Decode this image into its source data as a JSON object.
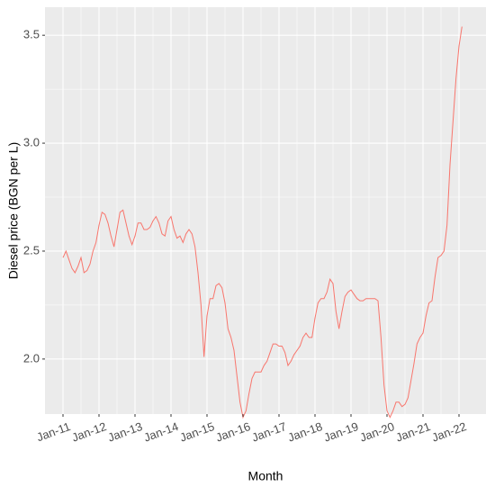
{
  "chart_data": {
    "type": "line",
    "x_label": "Month",
    "y_label": "Diesel price (BGN per L)",
    "x": [
      "2011-01",
      "2011-02",
      "2011-03",
      "2011-04",
      "2011-05",
      "2011-06",
      "2011-07",
      "2011-08",
      "2011-09",
      "2011-10",
      "2011-11",
      "2011-12",
      "2012-01",
      "2012-02",
      "2012-03",
      "2012-04",
      "2012-05",
      "2012-06",
      "2012-07",
      "2012-08",
      "2012-09",
      "2012-10",
      "2012-11",
      "2012-12",
      "2013-01",
      "2013-02",
      "2013-03",
      "2013-04",
      "2013-05",
      "2013-06",
      "2013-07",
      "2013-08",
      "2013-09",
      "2013-10",
      "2013-11",
      "2013-12",
      "2014-01",
      "2014-02",
      "2014-03",
      "2014-04",
      "2014-05",
      "2014-06",
      "2014-07",
      "2014-08",
      "2014-09",
      "2014-10",
      "2014-11",
      "2014-12",
      "2015-01",
      "2015-02",
      "2015-03",
      "2015-04",
      "2015-05",
      "2015-06",
      "2015-07",
      "2015-08",
      "2015-09",
      "2015-10",
      "2015-11",
      "2015-12",
      "2016-01",
      "2016-02",
      "2016-03",
      "2016-04",
      "2016-05",
      "2016-06",
      "2016-07",
      "2016-08",
      "2016-09",
      "2016-10",
      "2016-11",
      "2016-12",
      "2017-01",
      "2017-02",
      "2017-03",
      "2017-04",
      "2017-05",
      "2017-06",
      "2017-07",
      "2017-08",
      "2017-09",
      "2017-10",
      "2017-11",
      "2017-12",
      "2018-01",
      "2018-02",
      "2018-03",
      "2018-04",
      "2018-05",
      "2018-06",
      "2018-07",
      "2018-08",
      "2018-09",
      "2018-10",
      "2018-11",
      "2018-12",
      "2019-01",
      "2019-02",
      "2019-03",
      "2019-04",
      "2019-05",
      "2019-06",
      "2019-07",
      "2019-08",
      "2019-09",
      "2019-10",
      "2019-11",
      "2019-12",
      "2020-01",
      "2020-02",
      "2020-03",
      "2020-04",
      "2020-05",
      "2020-06",
      "2020-07",
      "2020-08",
      "2020-09",
      "2020-10",
      "2020-11",
      "2020-12",
      "2021-01",
      "2021-02",
      "2021-03",
      "2021-04",
      "2021-05",
      "2021-06",
      "2021-07",
      "2021-08",
      "2021-09",
      "2021-10",
      "2021-11",
      "2021-12",
      "2022-01",
      "2022-02"
    ],
    "series": [
      {
        "name": "Diesel price",
        "color": "#F8766D",
        "values": [
          2.47,
          2.5,
          2.46,
          2.42,
          2.4,
          2.43,
          2.47,
          2.4,
          2.41,
          2.44,
          2.5,
          2.54,
          2.62,
          2.68,
          2.67,
          2.63,
          2.57,
          2.52,
          2.6,
          2.68,
          2.69,
          2.63,
          2.57,
          2.53,
          2.57,
          2.63,
          2.63,
          2.6,
          2.6,
          2.61,
          2.64,
          2.66,
          2.63,
          2.58,
          2.57,
          2.64,
          2.66,
          2.6,
          2.56,
          2.57,
          2.54,
          2.58,
          2.6,
          2.58,
          2.52,
          2.4,
          2.25,
          2.01,
          2.2,
          2.28,
          2.28,
          2.34,
          2.35,
          2.33,
          2.26,
          2.14,
          2.1,
          2.04,
          1.92,
          1.8,
          1.73,
          1.76,
          1.84,
          1.91,
          1.94,
          1.94,
          1.94,
          1.97,
          1.99,
          2.03,
          2.07,
          2.07,
          2.06,
          2.06,
          2.03,
          1.97,
          1.99,
          2.02,
          2.04,
          2.06,
          2.1,
          2.12,
          2.1,
          2.1,
          2.19,
          2.26,
          2.28,
          2.28,
          2.31,
          2.37,
          2.35,
          2.22,
          2.14,
          2.22,
          2.29,
          2.31,
          2.32,
          2.3,
          2.28,
          2.27,
          2.27,
          2.28,
          2.28,
          2.28,
          2.28,
          2.27,
          2.1,
          1.88,
          1.76,
          1.73,
          1.76,
          1.8,
          1.8,
          1.78,
          1.79,
          1.82,
          1.9,
          1.98,
          2.07,
          2.1,
          2.12,
          2.2,
          2.26,
          2.27,
          2.38,
          2.47,
          2.48,
          2.5,
          2.62,
          2.9,
          3.1,
          3.3,
          3.45,
          3.54
        ]
      }
    ],
    "xlim": [
      "2010-07",
      "2022-10"
    ],
    "xticks": [
      {
        "value": "2011-01",
        "label": "Jan-11"
      },
      {
        "value": "2012-01",
        "label": "Jan-12"
      },
      {
        "value": "2013-01",
        "label": "Jan-13"
      },
      {
        "value": "2014-01",
        "label": "Jan-14"
      },
      {
        "value": "2015-01",
        "label": "Jan-15"
      },
      {
        "value": "2016-01",
        "label": "Jan-16"
      },
      {
        "value": "2017-01",
        "label": "Jan-17"
      },
      {
        "value": "2018-01",
        "label": "Jan-18"
      },
      {
        "value": "2019-01",
        "label": "Jan-19"
      },
      {
        "value": "2020-01",
        "label": "Jan-20"
      },
      {
        "value": "2021-01",
        "label": "Jan-21"
      },
      {
        "value": "2022-01",
        "label": "Jan-22"
      }
    ],
    "ylim": [
      1.745,
      3.63
    ],
    "yticks": [
      {
        "value": 2,
        "label": "2.0"
      },
      {
        "value": 2.5,
        "label": "2.5"
      },
      {
        "value": 3,
        "label": "3.0"
      },
      {
        "value": 3.5,
        "label": "3.5"
      }
    ],
    "grid": true
  }
}
